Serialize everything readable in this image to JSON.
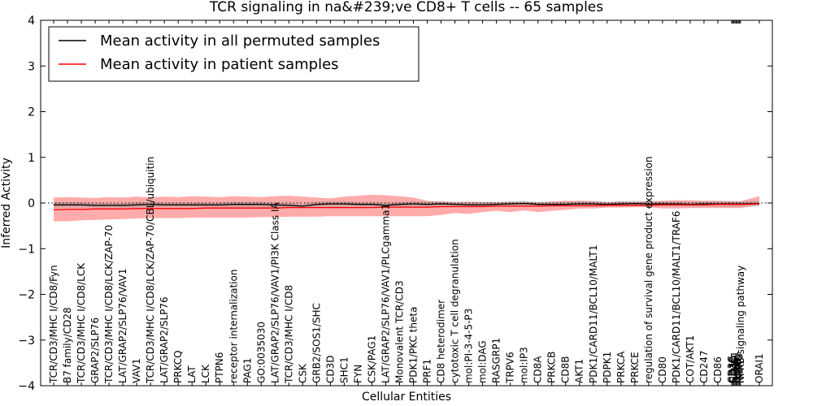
{
  "chart_data": {
    "type": "line",
    "title": "TCR signaling in na&#239;ve CD8+ T cells -- 65 samples",
    "xlabel": "Cellular Entities",
    "ylabel": "Inferred Activity",
    "ylim": [
      -4,
      4
    ],
    "yticks": [
      4,
      3,
      2,
      1,
      0,
      -1,
      -2,
      -3,
      -4
    ],
    "ytick_labels": [
      "4",
      "3",
      "2",
      "1",
      "0",
      "−1",
      "−2",
      "−3",
      "−4"
    ],
    "reference_line": 0,
    "legend_placement": "top-left",
    "categories": [
      "TCR/CD3/MHC I/CD8/Fyn",
      "B7 family/CD28",
      "TCR/CD3/MHC I/CD8/LCK",
      "GRAP2/SLP76",
      "TCR/CD3/MHC I/CD8/LCK/ZAP-70",
      "LAT/GRAP2/SLP76/VAV1",
      "VAV1",
      "TCR/CD3/MHC I/CD8/LCK/ZAP-70/CBL/ubiquitin",
      "LAT/GRAP2/SLP76",
      "PRKCQ",
      "LAT",
      "LCK",
      "PTPN6",
      "receptor internalization",
      "PAG1",
      "GO:0035030",
      "LAT/GRAP2/SLP76/VAV1/PI3K Class IA",
      "TCR/CD3/MHC I/CD8",
      "CSK",
      "GRB2/SOS1/SHC",
      "CD3D",
      "SHC1",
      "FYN",
      "CSK/PAG1",
      "LAT/GRAP2/SLP76/VAV1/PLCgamma1",
      "Monovalent TCR/CD3",
      "PDK1/PKC theta",
      "PRF1",
      "CD8 heterodimer",
      "cytotoxic T cell degranulation",
      "mol:PI-3-4-5-P3",
      "mol:DAG",
      "RASGRP1",
      "TRPV6",
      "mol:IP3",
      "CD8A",
      "PRKCB",
      "CD8B",
      "AKT1",
      "PDK1/CARD11/BCL10/MALT1",
      "PDPK1",
      "PRKCA",
      "PRKCE",
      "regulation of survival gene product expression",
      "CD80",
      "PDK1/CARD11/BCL10/MALT1/TRAF6",
      "COT/AKT1",
      "CD247",
      "CD86",
      "CD3G",
      "CD3E",
      "CD3D",
      "NFKB1",
      "RELA",
      "CHUK",
      "IKBKB",
      "IKBKG",
      "NFKB signaling pathway",
      "ORAI1"
    ],
    "x": [
      0,
      1,
      2,
      3,
      4,
      5,
      6,
      7,
      8,
      9,
      10,
      11,
      12,
      13,
      14,
      15,
      16,
      17,
      18,
      19,
      20,
      21,
      22,
      23,
      24,
      25,
      26,
      27,
      28,
      29,
      30,
      31,
      32,
      33,
      34,
      35,
      36,
      37,
      38,
      39,
      40,
      41,
      42,
      43,
      44,
      45,
      46,
      47,
      48,
      49,
      49.08,
      49.16,
      49.24,
      49.32,
      49.4,
      49.48,
      49.56,
      49.64,
      51
    ],
    "series": [
      {
        "name": "Mean activity in all permuted samples",
        "color": "#000000",
        "values": [
          -0.04,
          -0.04,
          -0.04,
          -0.05,
          -0.05,
          -0.05,
          -0.04,
          -0.03,
          -0.04,
          -0.04,
          -0.04,
          -0.04,
          -0.04,
          -0.03,
          -0.03,
          -0.03,
          -0.04,
          -0.05,
          -0.07,
          -0.03,
          -0.02,
          -0.02,
          -0.03,
          -0.03,
          -0.05,
          -0.03,
          -0.02,
          -0.03,
          -0.02,
          -0.03,
          -0.04,
          -0.04,
          -0.03,
          -0.02,
          -0.01,
          -0.03,
          -0.03,
          -0.03,
          -0.02,
          -0.02,
          -0.03,
          -0.02,
          -0.01,
          -0.02,
          -0.02,
          -0.02,
          -0.03,
          -0.02,
          -0.02,
          -0.02,
          -0.02,
          -0.02,
          -0.02,
          -0.02,
          -0.02,
          -0.02,
          -0.02,
          -0.02,
          -0.01
        ],
        "band_lower": [
          -0.1,
          -0.1,
          -0.1,
          -0.1,
          -0.1,
          -0.1,
          -0.1,
          -0.09,
          -0.09,
          -0.09,
          -0.09,
          -0.09,
          -0.09,
          -0.09,
          -0.09,
          -0.09,
          -0.09,
          -0.1,
          -0.11,
          -0.09,
          -0.08,
          -0.08,
          -0.08,
          -0.08,
          -0.1,
          -0.08,
          -0.08,
          -0.09,
          -0.08,
          -0.08,
          -0.09,
          -0.09,
          -0.08,
          -0.08,
          -0.07,
          -0.08,
          -0.08,
          -0.08,
          -0.08,
          -0.08,
          -0.08,
          -0.08,
          -0.07,
          -0.08,
          -0.08,
          -0.08,
          -0.08,
          -0.08,
          -0.08,
          -0.08,
          -0.08,
          -0.08,
          -0.08,
          -0.08,
          -0.08,
          -0.08,
          -0.08,
          -0.08,
          -0.07
        ],
        "band_upper": [
          0.02,
          0.02,
          0.02,
          0.0,
          0.0,
          0.0,
          0.02,
          0.03,
          0.01,
          0.01,
          0.01,
          0.01,
          0.01,
          0.03,
          0.03,
          0.03,
          0.01,
          0.0,
          -0.02,
          0.03,
          0.04,
          0.04,
          0.02,
          0.02,
          0.0,
          0.02,
          0.04,
          0.03,
          0.04,
          0.02,
          0.01,
          0.01,
          0.02,
          0.04,
          0.05,
          0.02,
          0.02,
          0.02,
          0.04,
          0.04,
          0.02,
          0.04,
          0.05,
          0.04,
          0.04,
          0.04,
          0.02,
          0.04,
          0.04,
          0.04,
          0.04,
          0.04,
          0.04,
          0.04,
          0.04,
          0.04,
          0.04,
          0.04,
          0.05
        ]
      },
      {
        "name": "Mean activity in patient samples",
        "color": "#ff0000",
        "band_color": "#ff6666",
        "values": [
          -0.15,
          -0.14,
          -0.14,
          -0.13,
          -0.13,
          -0.13,
          -0.12,
          -0.12,
          -0.12,
          -0.12,
          -0.12,
          -0.11,
          -0.11,
          -0.11,
          -0.11,
          -0.11,
          -0.11,
          -0.1,
          -0.1,
          -0.1,
          -0.1,
          -0.1,
          -0.1,
          -0.1,
          -0.09,
          -0.09,
          -0.09,
          -0.09,
          -0.08,
          -0.08,
          -0.08,
          -0.08,
          -0.07,
          -0.07,
          -0.07,
          -0.07,
          -0.06,
          -0.06,
          -0.06,
          -0.06,
          -0.05,
          -0.05,
          -0.05,
          -0.05,
          -0.04,
          -0.04,
          -0.04,
          -0.04,
          -0.03,
          -0.03,
          -0.03,
          -0.03,
          -0.03,
          -0.03,
          -0.03,
          -0.03,
          -0.03,
          -0.03,
          -0.02
        ],
        "band_lower": [
          -0.4,
          -0.4,
          -0.38,
          -0.37,
          -0.36,
          -0.35,
          -0.34,
          -0.33,
          -0.33,
          -0.33,
          -0.32,
          -0.32,
          -0.32,
          -0.32,
          -0.32,
          -0.31,
          -0.31,
          -0.3,
          -0.3,
          -0.3,
          -0.29,
          -0.29,
          -0.29,
          -0.29,
          -0.29,
          -0.29,
          -0.29,
          -0.29,
          -0.26,
          -0.22,
          -0.24,
          -0.2,
          -0.17,
          -0.2,
          -0.16,
          -0.2,
          -0.17,
          -0.15,
          -0.12,
          -0.12,
          -0.1,
          -0.1,
          -0.09,
          -0.09,
          -0.12,
          -0.12,
          -0.11,
          -0.11,
          -0.11,
          -0.11,
          -0.11,
          -0.11,
          -0.11,
          -0.11,
          -0.11,
          -0.11,
          -0.11,
          -0.11,
          -0.05
        ],
        "band_upper": [
          0.12,
          0.13,
          0.12,
          0.11,
          0.13,
          0.12,
          0.14,
          0.12,
          0.14,
          0.13,
          0.15,
          0.14,
          0.13,
          0.15,
          0.14,
          0.13,
          0.15,
          0.16,
          0.14,
          0.12,
          0.1,
          0.14,
          0.16,
          0.18,
          0.17,
          0.15,
          0.12,
          0.05,
          0.03,
          0.02,
          0.03,
          0.02,
          0.02,
          0.02,
          0.02,
          0.01,
          0.03,
          0.05,
          0.05,
          0.04,
          0.02,
          0.03,
          0.02,
          0.03,
          0.05,
          0.06,
          0.06,
          0.05,
          0.05,
          0.04,
          0.04,
          0.04,
          0.04,
          0.04,
          0.04,
          0.04,
          0.04,
          0.04,
          0.15
        ]
      }
    ]
  }
}
